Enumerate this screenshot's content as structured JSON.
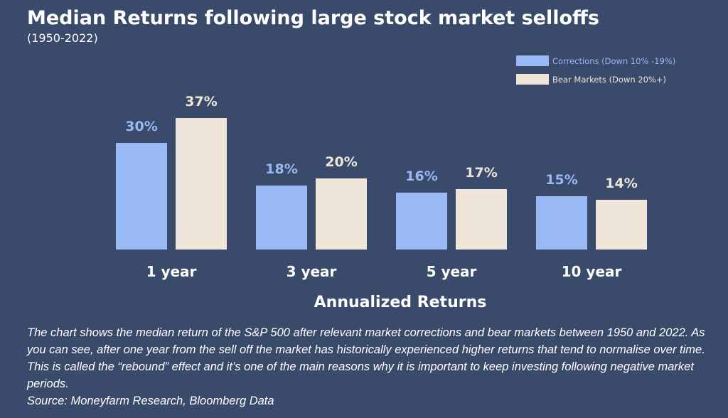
{
  "header": {
    "title": "Median Returns following large stock market selloffs",
    "subtitle": "(1950-2022)"
  },
  "chart_data": {
    "type": "bar",
    "categories": [
      "1 year",
      "3 year",
      "5 year",
      "10 year"
    ],
    "series": [
      {
        "name": "Corrections (Down 10% -19%)",
        "values": [
          30,
          18,
          16,
          15
        ],
        "labels": [
          "30%",
          "18%",
          "16%",
          "15%"
        ],
        "color": "#99b9f5"
      },
      {
        "name": "Bear Markets (Down 20%+)",
        "values": [
          37,
          20,
          17,
          14
        ],
        "labels": [
          "37%",
          "20%",
          "17%",
          "14%"
        ],
        "color": "#efe5d9"
      }
    ],
    "title": "",
    "xlabel": "Annualized Returns",
    "ylabel": "",
    "legend_position": "top-right",
    "grid": false
  },
  "caption": {
    "text": "The chart shows the median return of the S&P 500 after relevant market corrections and bear markets between 1950 and 2022. As you can see, after one year from the sell off the market has historically experienced higher returns that tend to normalise over time. This is called the “rebound” effect and it’s one of the main reasons why it is important to keep investing following negative market periods.",
    "source": "Source: Moneyfarm Research, Bloomberg Data"
  }
}
